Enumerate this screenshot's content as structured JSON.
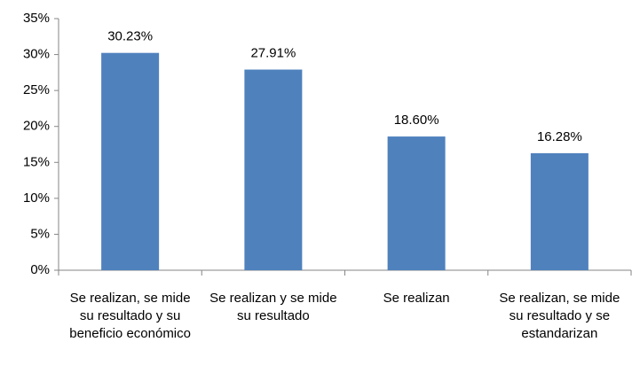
{
  "chart_data": {
    "type": "bar",
    "categories": [
      "Se realizan, se mide su resultado y su beneficio económico",
      "Se  realizan y se mide su resultado",
      "Se realizan",
      "Se realizan, se mide su resultado y se estandarizan"
    ],
    "values": [
      30.23,
      27.91,
      18.6,
      16.28
    ],
    "value_labels": [
      "30.23%",
      "27.91%",
      "18.60%",
      "16.28%"
    ],
    "color": "#4f81bd",
    "ylim": [
      0,
      35
    ],
    "yticks": [
      {
        "value": 0,
        "label": "0%"
      },
      {
        "value": 5,
        "label": "5%"
      },
      {
        "value": 10,
        "label": "10%"
      },
      {
        "value": 15,
        "label": "15%"
      },
      {
        "value": 20,
        "label": "20%"
      },
      {
        "value": 25,
        "label": "25%"
      },
      {
        "value": 30,
        "label": "30%"
      },
      {
        "value": 35,
        "label": "35%"
      }
    ],
    "grid": false
  }
}
